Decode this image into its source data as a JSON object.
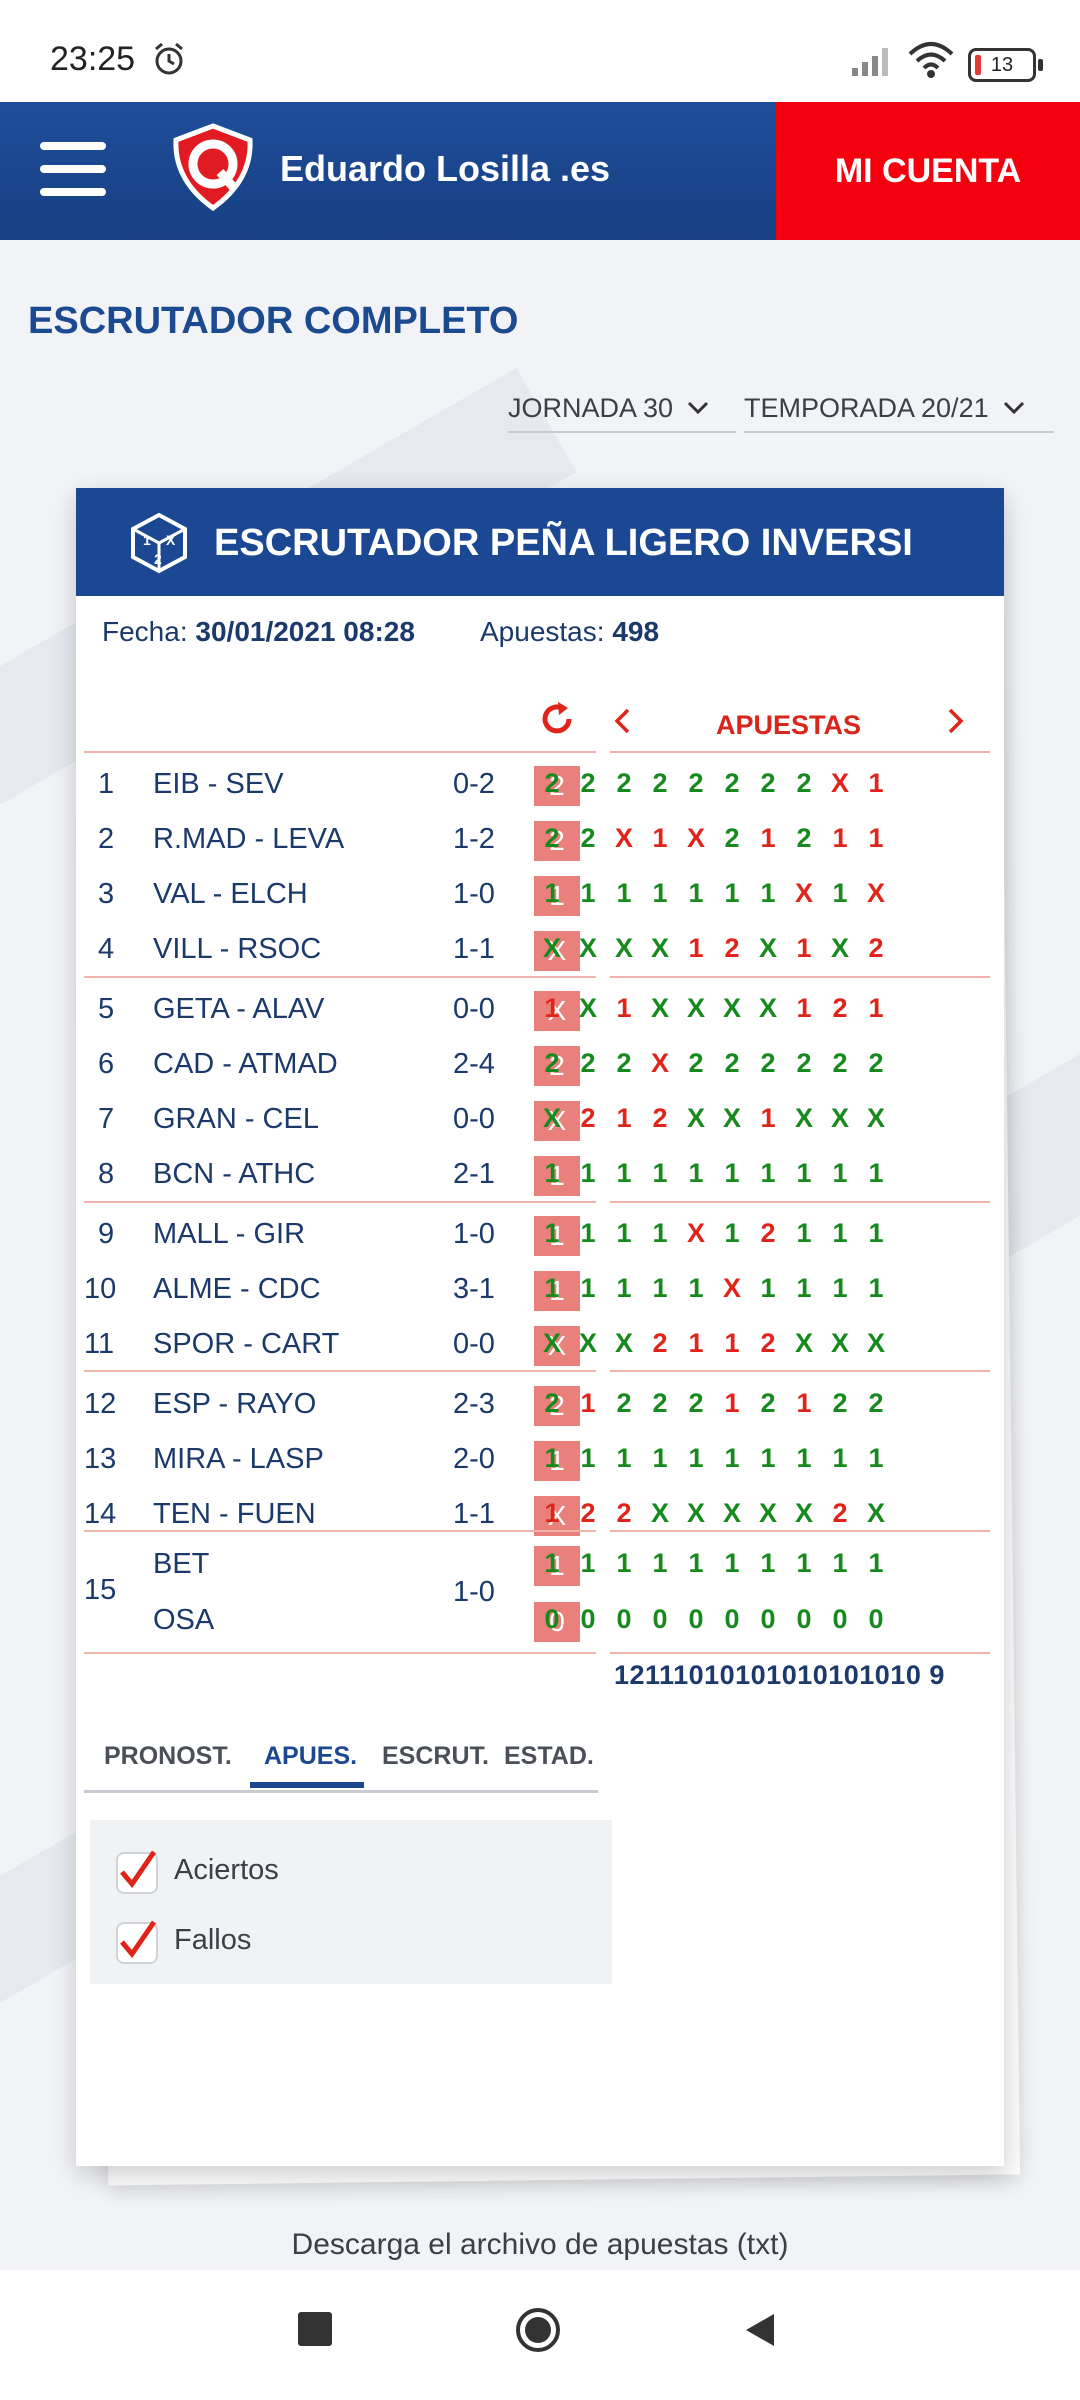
{
  "status_bar": {
    "time": "23:25",
    "battery": "13"
  },
  "header": {
    "brand": "Eduardo Losilla .es",
    "account_button": "MI CUENTA"
  },
  "page": {
    "title": "ESCRUTADOR COMPLETO"
  },
  "filters_top": {
    "jornada": "JORNADA 30",
    "temporada": "TEMPORADA 20/21"
  },
  "card": {
    "title": "ESCRUTADOR PEÑA LIGERO INVERSI",
    "fecha_label": "Fecha:",
    "fecha_value": "30/01/2021 08:28",
    "apuestas_label": "Apuestas:",
    "apuestas_value": "498",
    "bets_header": "APUESTAS"
  },
  "matches": [
    {
      "n": "1",
      "teams": "EIB - SEV",
      "score": "0-2",
      "result": "2",
      "bets": [
        "2",
        "2",
        "2",
        "2",
        "2",
        "2",
        "2",
        "2",
        "X",
        "1"
      ],
      "ok": [
        1,
        1,
        1,
        1,
        1,
        1,
        1,
        1,
        0,
        0
      ]
    },
    {
      "n": "2",
      "teams": "R.MAD - LEVA",
      "score": "1-2",
      "result": "2",
      "bets": [
        "2",
        "2",
        "X",
        "1",
        "X",
        "2",
        "1",
        "2",
        "1",
        "1"
      ],
      "ok": [
        1,
        1,
        0,
        0,
        0,
        1,
        0,
        1,
        0,
        0
      ]
    },
    {
      "n": "3",
      "teams": "VAL - ELCH",
      "score": "1-0",
      "result": "1",
      "bets": [
        "1",
        "1",
        "1",
        "1",
        "1",
        "1",
        "1",
        "X",
        "1",
        "X"
      ],
      "ok": [
        1,
        1,
        1,
        1,
        1,
        1,
        1,
        0,
        1,
        0
      ]
    },
    {
      "n": "4",
      "teams": "VILL - RSOC",
      "score": "1-1",
      "result": "X",
      "bets": [
        "X",
        "X",
        "X",
        "X",
        "1",
        "2",
        "X",
        "1",
        "X",
        "2"
      ],
      "ok": [
        1,
        1,
        1,
        1,
        0,
        0,
        1,
        0,
        1,
        0
      ]
    },
    {
      "n": "5",
      "teams": "GETA - ALAV",
      "score": "0-0",
      "result": "X",
      "bets": [
        "1",
        "X",
        "1",
        "X",
        "X",
        "X",
        "X",
        "1",
        "2",
        "1"
      ],
      "ok": [
        0,
        1,
        0,
        1,
        1,
        1,
        1,
        0,
        0,
        0
      ]
    },
    {
      "n": "6",
      "teams": "CAD - ATMAD",
      "score": "2-4",
      "result": "2",
      "bets": [
        "2",
        "2",
        "2",
        "X",
        "2",
        "2",
        "2",
        "2",
        "2",
        "2"
      ],
      "ok": [
        1,
        1,
        1,
        0,
        1,
        1,
        1,
        1,
        1,
        1
      ]
    },
    {
      "n": "7",
      "teams": "GRAN - CEL",
      "score": "0-0",
      "result": "X",
      "bets": [
        "X",
        "2",
        "1",
        "2",
        "X",
        "X",
        "1",
        "X",
        "X",
        "X"
      ],
      "ok": [
        1,
        0,
        0,
        0,
        1,
        1,
        0,
        1,
        1,
        1
      ]
    },
    {
      "n": "8",
      "teams": "BCN - ATHC",
      "score": "2-1",
      "result": "1",
      "bets": [
        "1",
        "1",
        "1",
        "1",
        "1",
        "1",
        "1",
        "1",
        "1",
        "1"
      ],
      "ok": [
        1,
        1,
        1,
        1,
        1,
        1,
        1,
        1,
        1,
        1
      ]
    },
    {
      "n": "9",
      "teams": "MALL - GIR",
      "score": "1-0",
      "result": "1",
      "bets": [
        "1",
        "1",
        "1",
        "1",
        "X",
        "1",
        "2",
        "1",
        "1",
        "1"
      ],
      "ok": [
        1,
        1,
        1,
        1,
        0,
        1,
        0,
        1,
        1,
        1
      ]
    },
    {
      "n": "10",
      "teams": "ALME - CDC",
      "score": "3-1",
      "result": "1",
      "bets": [
        "1",
        "1",
        "1",
        "1",
        "1",
        "X",
        "1",
        "1",
        "1",
        "1"
      ],
      "ok": [
        1,
        1,
        1,
        1,
        1,
        0,
        1,
        1,
        1,
        1
      ]
    },
    {
      "n": "11",
      "teams": "SPOR - CART",
      "score": "0-0",
      "result": "X",
      "bets": [
        "X",
        "X",
        "X",
        "2",
        "1",
        "1",
        "2",
        "X",
        "X",
        "X"
      ],
      "ok": [
        1,
        1,
        1,
        0,
        0,
        0,
        0,
        1,
        1,
        1
      ]
    },
    {
      "n": "12",
      "teams": "ESP - RAYO",
      "score": "2-3",
      "result": "2",
      "bets": [
        "2",
        "1",
        "2",
        "2",
        "2",
        "1",
        "2",
        "1",
        "2",
        "2"
      ],
      "ok": [
        1,
        0,
        1,
        1,
        1,
        0,
        1,
        0,
        1,
        1
      ]
    },
    {
      "n": "13",
      "teams": "MIRA - LASP",
      "score": "2-0",
      "result": "1",
      "bets": [
        "1",
        "1",
        "1",
        "1",
        "1",
        "1",
        "1",
        "1",
        "1",
        "1"
      ],
      "ok": [
        1,
        1,
        1,
        1,
        1,
        1,
        1,
        1,
        1,
        1
      ]
    },
    {
      "n": "14",
      "teams": "TEN - FUEN",
      "score": "1-1",
      "result": "X",
      "bets": [
        "1",
        "2",
        "2",
        "X",
        "X",
        "X",
        "X",
        "X",
        "2",
        "X"
      ],
      "ok": [
        0,
        0,
        0,
        1,
        1,
        1,
        1,
        1,
        0,
        1
      ]
    }
  ],
  "pleno": {
    "n": "15",
    "team_home": "BET",
    "team_away": "OSA",
    "score": "1-0",
    "result_home": "1",
    "result_away": "0",
    "bets_home": [
      "1",
      "1",
      "1",
      "1",
      "1",
      "1",
      "1",
      "1",
      "1",
      "1"
    ],
    "bets_away": [
      "0",
      "0",
      "0",
      "0",
      "0",
      "0",
      "0",
      "0",
      "0",
      "0"
    ]
  },
  "totals": "12111010101010101010 9",
  "tabs": [
    "PRONOST.",
    "APUES.",
    "ESCRUT.",
    "ESTAD."
  ],
  "active_tab": "APUES.",
  "check_filters": [
    {
      "label": "Aciertos",
      "checked": true
    },
    {
      "label": "Fallos",
      "checked": true
    }
  ],
  "download_link": "Descarga el archivo de apuestas (txt)",
  "colors": {
    "brand_blue": "#1c4893",
    "red": "#f5000e",
    "hit": "#178a1e",
    "miss": "#e0241a",
    "result_box": "#e9807c"
  }
}
